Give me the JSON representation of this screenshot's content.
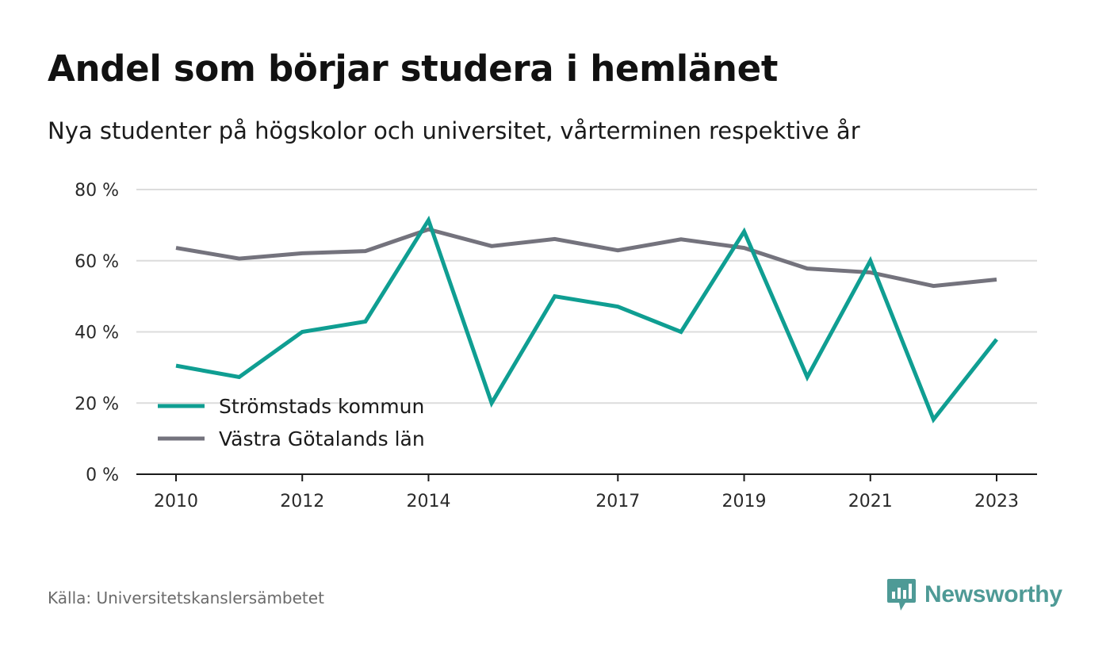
{
  "header": {
    "title": "Andel som börjar studera i hemlänet",
    "subtitle": "Nya studenter på högskolor och universitet, vårterminen respektive år"
  },
  "footer": {
    "source": "Källa: Universitetskanslersämbetet",
    "brand": "Newsworthy",
    "brand_icon": "newsworthy-logo-icon"
  },
  "colors": {
    "series_1": "#0f9e92",
    "series_2": "#74737d",
    "grid": "#dcdcdc",
    "axis": "#1a1a1a",
    "brand": "#4e9a96"
  },
  "chart_data": {
    "type": "line",
    "title": "Andel som börjar studera i hemlänet",
    "subtitle": "Nya studenter på högskolor och universitet, vårterminen respektive år",
    "x": [
      2010,
      2011,
      2012,
      2013,
      2014,
      2015,
      2016,
      2017,
      2018,
      2019,
      2020,
      2021,
      2022,
      2023
    ],
    "x_ticks": [
      "2010",
      "2012",
      "2014",
      "2017",
      "2019",
      "2021",
      "2023"
    ],
    "y_ticks": [
      "0 %",
      "20 %",
      "40 %",
      "60 %",
      "80 %"
    ],
    "ylim": [
      0,
      80
    ],
    "grid": true,
    "legend_position": "bottom-left",
    "series": [
      {
        "name": "Strömstads kommun",
        "values": [
          30.5,
          27.3,
          40.0,
          42.9,
          71.4,
          20.0,
          50.0,
          47.1,
          40.0,
          68.2,
          27.3,
          60.0,
          15.4,
          37.9
        ]
      },
      {
        "name": "Västra Götalands län",
        "values": [
          63.6,
          60.6,
          62.1,
          62.7,
          68.8,
          64.1,
          66.1,
          62.9,
          66.0,
          63.6,
          57.8,
          56.7,
          52.9,
          54.7
        ]
      }
    ]
  }
}
